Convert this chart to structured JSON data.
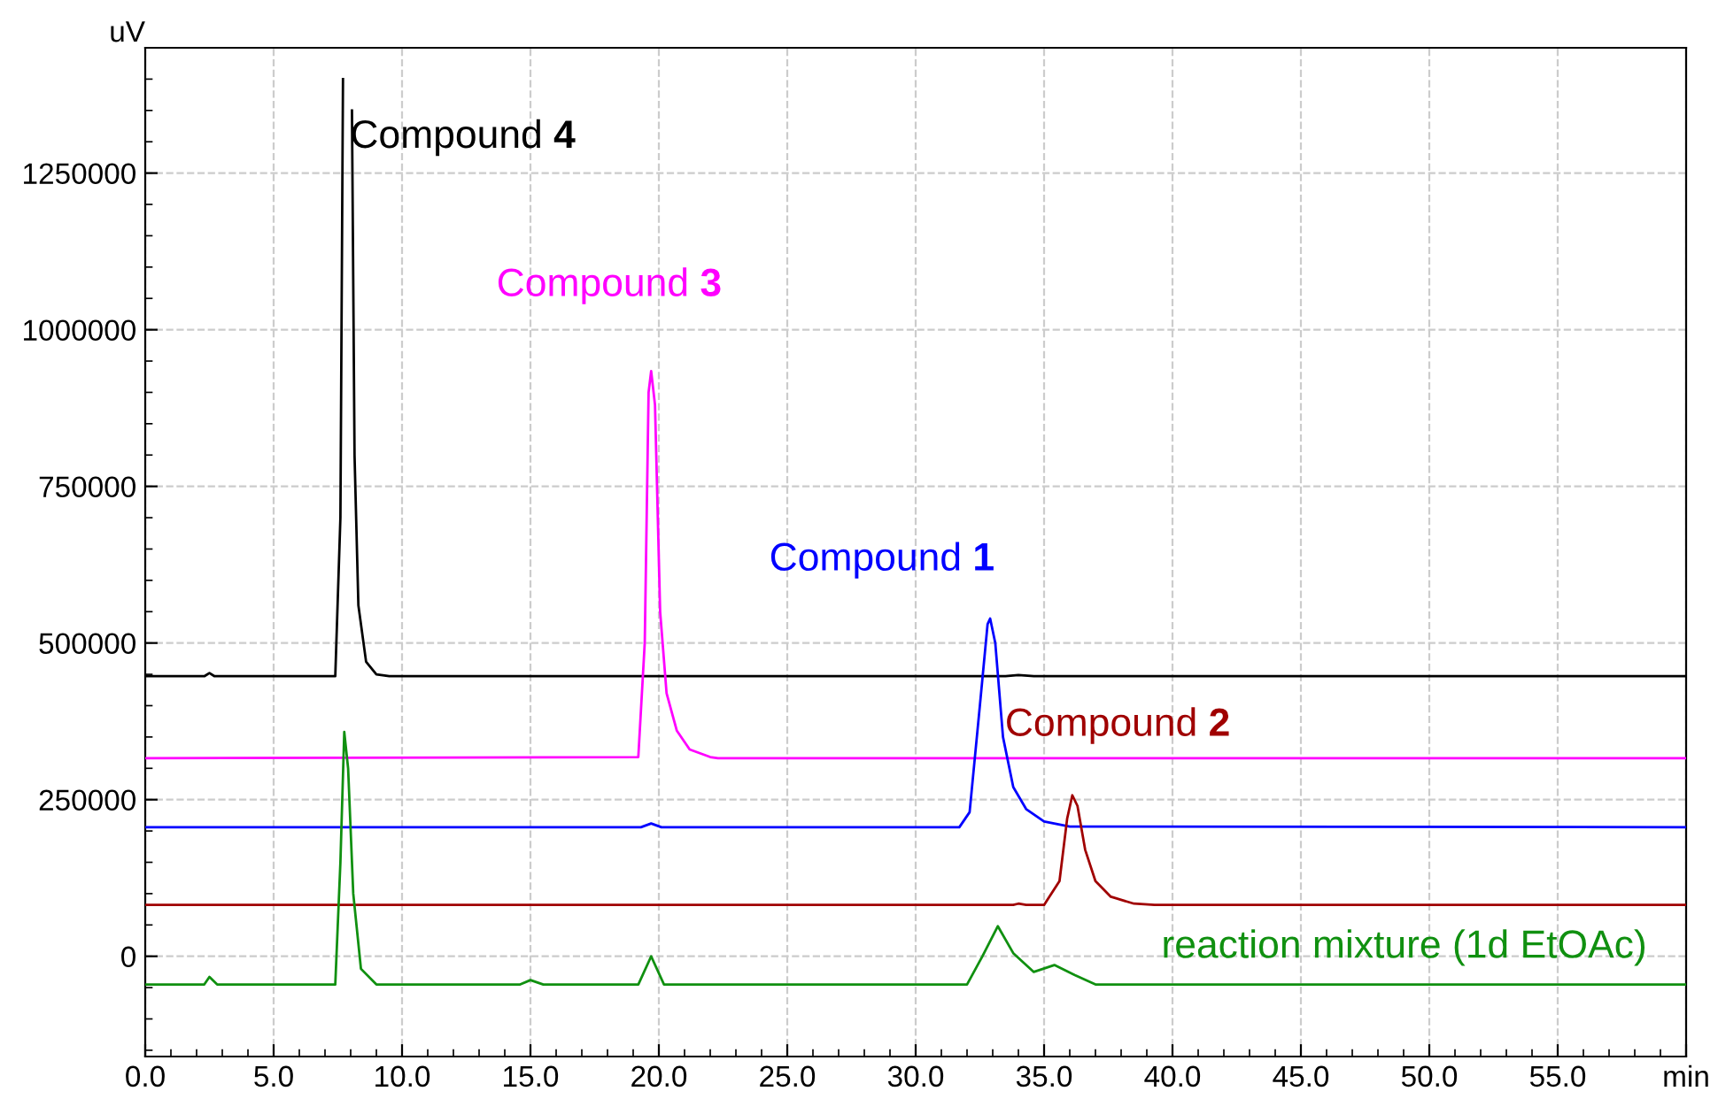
{
  "chart_data": {
    "type": "line",
    "ylabel": "uV",
    "xlim": [
      0,
      60
    ],
    "ylim": [
      -160000,
      1450000
    ],
    "xticks": [
      {
        "value": 0,
        "label": "0.0"
      },
      {
        "value": 5,
        "label": "5.0"
      },
      {
        "value": 10,
        "label": "10.0"
      },
      {
        "value": 15,
        "label": "15.0"
      },
      {
        "value": 20,
        "label": "20.0"
      },
      {
        "value": 25,
        "label": "25.0"
      },
      {
        "value": 30,
        "label": "30.0"
      },
      {
        "value": 35,
        "label": "35.0"
      },
      {
        "value": 40,
        "label": "40.0"
      },
      {
        "value": 45,
        "label": "45.0"
      },
      {
        "value": 50,
        "label": "50.0"
      },
      {
        "value": 55,
        "label": "55.0"
      },
      {
        "value": 60,
        "label": "min"
      }
    ],
    "yticks": [
      0,
      250000,
      500000,
      750000,
      1000000,
      1250000
    ],
    "grid": true,
    "legend": false,
    "marker": "none",
    "line_style": "solid",
    "series": [
      {
        "name": "Compound 4",
        "color": "#000000",
        "x": [
          0,
          2.3,
          2.5,
          2.7,
          7.4,
          7.6,
          7.7,
          7.75,
          8.0,
          8.05,
          8.15,
          8.3,
          8.6,
          9.0,
          9.5,
          33.5,
          34.0,
          34.6,
          60
        ],
        "values": [
          447000,
          447000,
          452000,
          447000,
          447000,
          700000,
          1400000,
          null,
          null,
          1350000,
          800000,
          560000,
          470000,
          450000,
          447000,
          447000,
          449000,
          447000,
          447000
        ]
      },
      {
        "name": "Compound 3",
        "color": "#ff00ff",
        "x": [
          0,
          19.2,
          19.45,
          19.6,
          19.7,
          19.85,
          20.05,
          20.3,
          20.7,
          21.2,
          22.0,
          22.3,
          60
        ],
        "values": [
          316000,
          318000,
          500000,
          900000,
          934000,
          880000,
          550000,
          420000,
          360000,
          330000,
          318000,
          316000,
          316000
        ]
      },
      {
        "name": "Compound 1",
        "color": "#0000ff",
        "x": [
          0,
          19.3,
          19.7,
          20.1,
          31.7,
          32.1,
          32.5,
          32.8,
          32.9,
          33.1,
          33.4,
          33.8,
          34.3,
          35.0,
          36.0,
          60
        ],
        "values": [
          206000,
          206000,
          212000,
          206000,
          206000,
          230000,
          400000,
          530000,
          539000,
          500000,
          350000,
          270000,
          235000,
          215000,
          207000,
          206000
        ]
      },
      {
        "name": "Compound 2",
        "color": "#a00000",
        "x": [
          0,
          33.8,
          34.0,
          34.3,
          35.0,
          35.6,
          35.9,
          36.1,
          36.3,
          36.6,
          37.0,
          37.6,
          38.5,
          39.3,
          60
        ],
        "values": [
          82000,
          82000,
          84000,
          82000,
          82000,
          120000,
          220000,
          257000,
          240000,
          170000,
          120000,
          95000,
          84000,
          82000,
          82000
        ]
      },
      {
        "name": "reaction mixture (1d EtOAc)",
        "color": "#109010",
        "x": [
          0,
          2.3,
          2.5,
          2.8,
          7.4,
          7.6,
          7.75,
          7.9,
          8.1,
          8.4,
          9.0,
          14.6,
          15.0,
          15.5,
          19.2,
          19.7,
          20.2,
          32.0,
          32.6,
          33.2,
          33.8,
          34.6,
          35.4,
          36.2,
          37.0,
          60
        ],
        "values": [
          -45000,
          -45000,
          -33000,
          -45000,
          -45000,
          150000,
          358000,
          300000,
          100000,
          -20000,
          -45000,
          -45000,
          -38000,
          -45000,
          -45000,
          0,
          -45000,
          -45000,
          0,
          48000,
          5000,
          -25000,
          -14000,
          -30000,
          -45000,
          -45000
        ]
      }
    ]
  }
}
